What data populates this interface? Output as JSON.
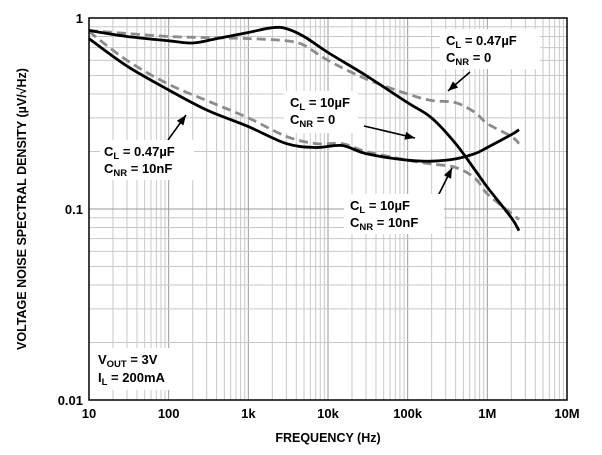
{
  "chart_data": {
    "type": "line",
    "xlabel": "FREQUENCY (Hz)",
    "ylabel": "VOLTAGE NOISE SPECTRAL DENSITY (µV/√Hz)",
    "xscale": "log",
    "yscale": "log",
    "xlim": [
      10,
      10000000
    ],
    "ylim": [
      0.01,
      1
    ],
    "grid": true,
    "x_tick_labels": [
      "10",
      "100",
      "1k",
      "10k",
      "100k",
      "1M",
      "10M"
    ],
    "y_tick_labels": [
      "0.01",
      "0.1",
      "1"
    ],
    "series": [
      {
        "label_lines": [
          [
            "C",
            "L",
            " = 0.47µF"
          ],
          [
            "C",
            "NR",
            " = 0"
          ]
        ],
        "style": "dashed",
        "color": "#8c8c8c",
        "points": [
          [
            10,
            0.86
          ],
          [
            30,
            0.83
          ],
          [
            100,
            0.8
          ],
          [
            300,
            0.79
          ],
          [
            1000,
            0.78
          ],
          [
            3000,
            0.76
          ],
          [
            5000,
            0.72
          ],
          [
            10000,
            0.6
          ],
          [
            30000,
            0.48
          ],
          [
            100000,
            0.4
          ],
          [
            200000,
            0.37
          ],
          [
            400000,
            0.36
          ],
          [
            700000,
            0.32
          ],
          [
            1000000,
            0.28
          ],
          [
            2000000,
            0.24
          ],
          [
            2500000,
            0.22
          ]
        ]
      },
      {
        "label_lines": [
          [
            "C",
            "L",
            " = 10µF"
          ],
          [
            "C",
            "NR",
            " = 0"
          ]
        ],
        "style": "solid",
        "color": "#000000",
        "points": [
          [
            10,
            0.86
          ],
          [
            30,
            0.8
          ],
          [
            100,
            0.76
          ],
          [
            200,
            0.74
          ],
          [
            400,
            0.78
          ],
          [
            1000,
            0.84
          ],
          [
            2000,
            0.89
          ],
          [
            3000,
            0.88
          ],
          [
            5000,
            0.8
          ],
          [
            10000,
            0.66
          ],
          [
            30000,
            0.5
          ],
          [
            100000,
            0.36
          ],
          [
            200000,
            0.3
          ],
          [
            400000,
            0.22
          ],
          [
            700000,
            0.16
          ],
          [
            1000000,
            0.13
          ],
          [
            2000000,
            0.09
          ],
          [
            2500000,
            0.077
          ]
        ]
      },
      {
        "label_lines": [
          [
            "C",
            "L",
            " = 0.47µF"
          ],
          [
            "C",
            "NR",
            " = 10nF"
          ]
        ],
        "style": "dashed",
        "color": "#8c8c8c",
        "points": [
          [
            10,
            0.85
          ],
          [
            30,
            0.6
          ],
          [
            100,
            0.45
          ],
          [
            300,
            0.37
          ],
          [
            1000,
            0.3
          ],
          [
            3000,
            0.24
          ],
          [
            7000,
            0.22
          ],
          [
            15000,
            0.22
          ],
          [
            30000,
            0.2
          ],
          [
            100000,
            0.18
          ],
          [
            200000,
            0.172
          ],
          [
            400000,
            0.165
          ],
          [
            700000,
            0.145
          ],
          [
            1000000,
            0.12
          ],
          [
            2000000,
            0.095
          ],
          [
            2500000,
            0.088
          ]
        ]
      },
      {
        "label_lines": [
          [
            "C",
            "L",
            " = 10µF"
          ],
          [
            "C",
            "NR",
            " = 10nF"
          ]
        ],
        "style": "solid",
        "color": "#000000",
        "points": [
          [
            10,
            0.78
          ],
          [
            30,
            0.56
          ],
          [
            100,
            0.42
          ],
          [
            300,
            0.33
          ],
          [
            1000,
            0.27
          ],
          [
            3000,
            0.22
          ],
          [
            7000,
            0.21
          ],
          [
            15000,
            0.215
          ],
          [
            30000,
            0.195
          ],
          [
            100000,
            0.18
          ],
          [
            200000,
            0.178
          ],
          [
            400000,
            0.183
          ],
          [
            700000,
            0.195
          ],
          [
            1000000,
            0.21
          ],
          [
            2000000,
            0.245
          ],
          [
            2500000,
            0.26
          ]
        ]
      }
    ],
    "conditions": [
      [
        "V",
        "OUT",
        " = 3V"
      ],
      [
        "I",
        "L",
        " = 200mA"
      ]
    ]
  }
}
